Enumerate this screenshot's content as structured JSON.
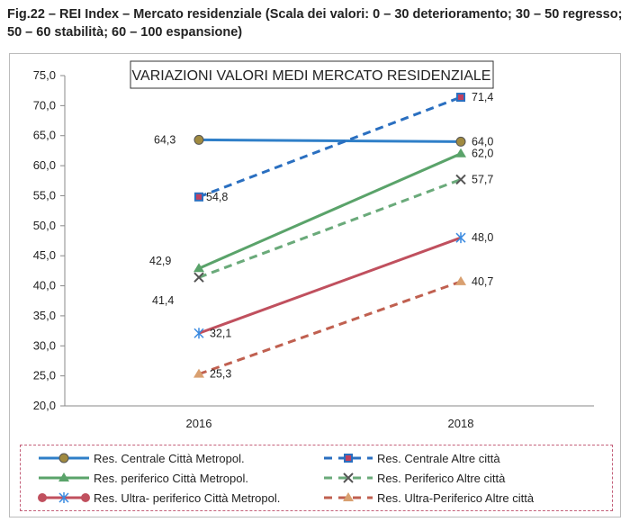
{
  "figure_title": "Fig.22 – REI Index – Mercato residenziale (Scala dei valori: 0 – 30 deterioramento; 30 – 50 regresso; 50 – 60 stabilità; 60 – 100 espansione)",
  "chart_data": {
    "type": "line",
    "title": "VARIAZIONI VALORI MEDI MERCATO RESIDENZIALE",
    "categories": [
      "2016",
      "2018"
    ],
    "ylim": [
      20,
      75
    ],
    "yticks": [
      "20,0",
      "25,0",
      "30,0",
      "35,0",
      "40,0",
      "45,0",
      "50,0",
      "55,0",
      "60,0",
      "65,0",
      "70,0",
      "75,0"
    ],
    "grid": false,
    "legend_position": "bottom",
    "series": [
      {
        "name": "Res. Centrale Città Metropol.",
        "values": [
          64.3,
          64.0
        ],
        "labels": [
          "64,3",
          "64,0"
        ],
        "color": "#2f7fc8",
        "dash": false,
        "marker": "circle-gold"
      },
      {
        "name": "Res. periferico Città Metropol.",
        "values": [
          42.9,
          62.0
        ],
        "labels": [
          "42,9",
          "62,0"
        ],
        "color": "#5aa36a",
        "dash": false,
        "marker": "triangle"
      },
      {
        "name": "Res. Ultra- periferico Città Metropol.",
        "values": [
          32.1,
          48.0
        ],
        "labels": [
          "32,1",
          "48,0"
        ],
        "color": "#c0505e",
        "dash": false,
        "marker": "star"
      },
      {
        "name": "Res. Centrale Altre città",
        "values": [
          54.8,
          71.4
        ],
        "labels": [
          "54,8",
          "71,4"
        ],
        "color": "#2a6fc0",
        "dash": true,
        "marker": "square"
      },
      {
        "name": "Res. Periferico Altre città",
        "values": [
          41.4,
          57.7
        ],
        "labels": [
          "41,4",
          "57,7"
        ],
        "color": "#6aaa7a",
        "dash": true,
        "marker": "x"
      },
      {
        "name": "Res. Ultra-Periferico Altre città",
        "values": [
          25.3,
          40.7
        ],
        "labels": [
          "25,3",
          "40,7"
        ],
        "color": "#c06050",
        "dash": true,
        "marker": "triangle-tan"
      }
    ]
  }
}
